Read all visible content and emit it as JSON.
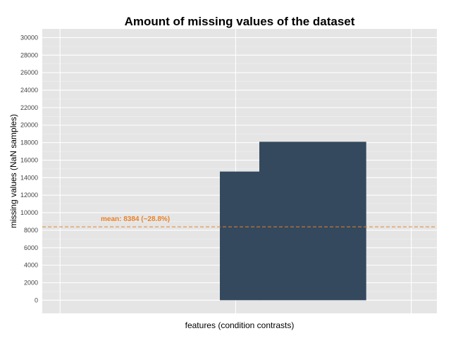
{
  "chart_data": {
    "type": "bar",
    "title": "Amount of missing values of the dataset",
    "xlabel": "features (condition contrasts)",
    "ylabel": "missing values (NaN samples)",
    "ylim": [
      -1500,
      31000
    ],
    "yticks": [
      0,
      2000,
      4000,
      6000,
      8000,
      10000,
      12000,
      14000,
      16000,
      18000,
      20000,
      22000,
      24000,
      26000,
      28000,
      30000
    ],
    "xlim": [
      0,
      1
    ],
    "bars": [
      {
        "x0": 0.45,
        "x1": 0.55,
        "value": 14700
      },
      {
        "x0": 0.55,
        "x1": 0.82,
        "value": 18100
      }
    ],
    "mean": {
      "value": 8384,
      "label": "mean: 8384 (~28.8%)",
      "color": "#e8822a"
    },
    "colors": {
      "bar": "#34495e",
      "panel": "#e5e5e5",
      "grid": "#ffffff"
    },
    "grid": true
  }
}
